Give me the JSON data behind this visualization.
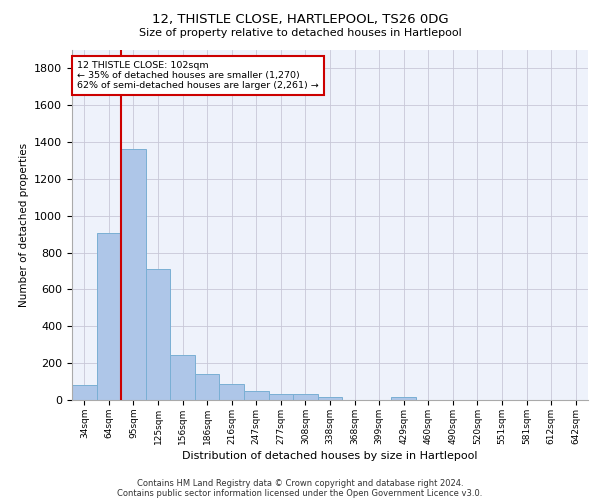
{
  "title": "12, THISTLE CLOSE, HARTLEPOOL, TS26 0DG",
  "subtitle": "Size of property relative to detached houses in Hartlepool",
  "xlabel": "Distribution of detached houses by size in Hartlepool",
  "ylabel": "Number of detached properties",
  "categories": [
    "34sqm",
    "64sqm",
    "95sqm",
    "125sqm",
    "156sqm",
    "186sqm",
    "216sqm",
    "247sqm",
    "277sqm",
    "308sqm",
    "338sqm",
    "368sqm",
    "399sqm",
    "429sqm",
    "460sqm",
    "490sqm",
    "520sqm",
    "551sqm",
    "581sqm",
    "612sqm",
    "642sqm"
  ],
  "values": [
    80,
    905,
    1360,
    710,
    245,
    140,
    85,
    50,
    30,
    30,
    18,
    0,
    0,
    18,
    0,
    0,
    0,
    0,
    0,
    0,
    0
  ],
  "bar_color": "#aec6e8",
  "bar_edge_color": "#7aafd4",
  "vline_color": "#cc0000",
  "vline_index": 2,
  "annotation_line1": "12 THISTLE CLOSE: 102sqm",
  "annotation_line2": "← 35% of detached houses are smaller (1,270)",
  "annotation_line3": "62% of semi-detached houses are larger (2,261) →",
  "annotation_box_color": "#cc0000",
  "ylim": [
    0,
    1900
  ],
  "yticks": [
    0,
    200,
    400,
    600,
    800,
    1000,
    1200,
    1400,
    1600,
    1800
  ],
  "background_color": "#eef2fb",
  "grid_color": "#c8c8d8",
  "footer_line1": "Contains HM Land Registry data © Crown copyright and database right 2024.",
  "footer_line2": "Contains public sector information licensed under the Open Government Licence v3.0."
}
